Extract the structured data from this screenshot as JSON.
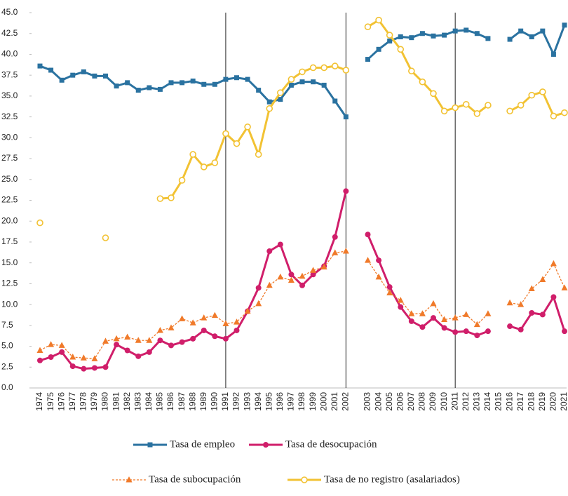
{
  "chart_data": {
    "type": "line",
    "categories": [
      "1974",
      "1975",
      "1976",
      "1977",
      "1978",
      "1979",
      "1980",
      "1981",
      "1982",
      "1983",
      "1984",
      "1985",
      "1986",
      "1987",
      "1988",
      "1989",
      "1990",
      "1991",
      "1992",
      "1993",
      "1994",
      "1995",
      "1996",
      "1997",
      "1998",
      "1999",
      "2000",
      "2001",
      "2002",
      null,
      "2003",
      "2004",
      "2005",
      "2006",
      "2007",
      "2008",
      "2009",
      "2010",
      "2011",
      "2012",
      "2013",
      "2014",
      "2015",
      "2016",
      "2017",
      "2018",
      "2019",
      "2020",
      "2021"
    ],
    "series": [
      {
        "name": "Tasa de empleo",
        "color": "#2a72a0",
        "marker": "square",
        "values": [
          38.6,
          38.1,
          36.9,
          37.5,
          37.9,
          37.4,
          37.4,
          36.2,
          36.6,
          35.7,
          36.0,
          35.8,
          36.6,
          36.6,
          36.8,
          36.4,
          36.4,
          37.0,
          37.2,
          37.0,
          35.7,
          34.3,
          34.6,
          36.3,
          36.7,
          36.7,
          36.3,
          34.4,
          32.5,
          null,
          39.4,
          40.6,
          41.6,
          42.1,
          42.0,
          42.5,
          42.2,
          42.3,
          42.8,
          42.9,
          42.5,
          41.9,
          null,
          41.8,
          42.8,
          42.1,
          42.8,
          40.0,
          43.5
        ]
      },
      {
        "name": "Tasa de desocupación",
        "color": "#d01e6a",
        "marker": "circle",
        "values": [
          3.3,
          3.7,
          4.3,
          2.6,
          2.3,
          2.4,
          2.5,
          5.2,
          4.5,
          3.8,
          4.3,
          5.7,
          5.1,
          5.5,
          5.9,
          6.9,
          6.2,
          5.9,
          6.9,
          9.2,
          12.0,
          16.4,
          17.2,
          13.6,
          12.3,
          13.6,
          14.6,
          18.1,
          23.6,
          null,
          18.4,
          15.3,
          12.1,
          9.7,
          8.0,
          7.3,
          8.4,
          7.2,
          6.7,
          6.8,
          6.3,
          6.8,
          null,
          7.4,
          7.0,
          9.0,
          8.8,
          10.9,
          6.8
        ]
      },
      {
        "name": "Tasa de subocupación",
        "color": "#f07a2a",
        "marker": "triangle",
        "dash": true,
        "values": [
          4.5,
          5.2,
          5.1,
          3.7,
          3.6,
          3.5,
          5.6,
          5.9,
          6.1,
          5.7,
          5.7,
          6.9,
          7.2,
          8.3,
          7.8,
          8.4,
          8.7,
          7.7,
          7.9,
          9.2,
          10.1,
          12.3,
          13.3,
          12.9,
          13.4,
          14.1,
          14.5,
          16.2,
          16.4,
          null,
          15.3,
          13.3,
          11.4,
          10.5,
          8.9,
          8.9,
          10.1,
          8.2,
          8.4,
          8.8,
          7.6,
          8.9,
          null,
          10.2,
          10.0,
          11.9,
          13.0,
          14.9,
          12.0
        ]
      },
      {
        "name": "Tasa de no registro (asalariados)",
        "color": "#f2c233",
        "marker": "circle",
        "open": true,
        "values": [
          19.8,
          null,
          null,
          null,
          null,
          null,
          18.0,
          null,
          null,
          null,
          null,
          22.7,
          22.8,
          24.9,
          28.0,
          26.5,
          27.0,
          30.5,
          29.3,
          31.3,
          28.0,
          33.5,
          35.4,
          37.0,
          37.9,
          38.4,
          38.4,
          38.6,
          38.1,
          null,
          43.3,
          44.1,
          42.3,
          40.6,
          38.0,
          36.7,
          35.3,
          33.2,
          33.6,
          34.0,
          32.9,
          33.9,
          null,
          33.2,
          33.9,
          35.1,
          35.5,
          32.6,
          33.0
        ]
      }
    ],
    "ylim": [
      0,
      45
    ],
    "yticks": [
      {
        "value": 0,
        "label": "0.0"
      },
      2.5,
      {
        "value": 5,
        "label": "5.0"
      },
      7.5,
      {
        "value": 10,
        "label": "10.0"
      },
      12.5,
      {
        "value": 15,
        "label": "15.0"
      },
      17.5,
      {
        "value": 20,
        "label": "20.0"
      },
      22.5,
      {
        "value": 25,
        "label": "25.0"
      },
      27.5,
      {
        "value": 30,
        "label": "30.0"
      },
      32.5,
      {
        "value": 35,
        "label": "35.0"
      },
      37.5,
      {
        "value": 40,
        "label": "40.0"
      },
      42.5,
      {
        "value": 45,
        "label": "45.0"
      }
    ],
    "vlines": [
      "1991",
      "2002",
      "2011"
    ],
    "legend": "bottom"
  }
}
